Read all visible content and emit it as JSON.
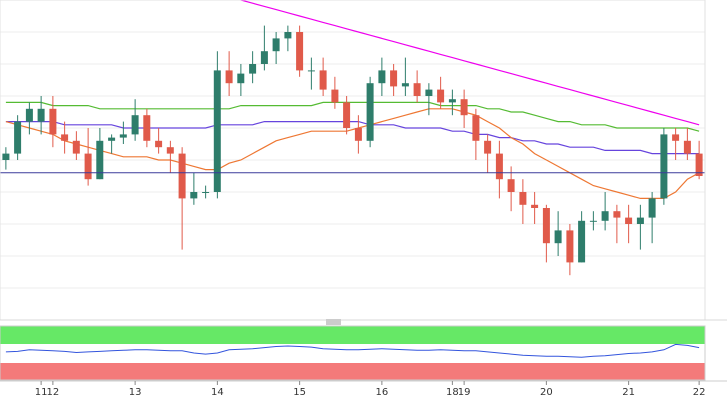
{
  "chart_data": {
    "type": "candlestick",
    "title": "",
    "x_ticks": [
      "11",
      "12",
      "13",
      "14",
      "15",
      "16",
      "18",
      "19",
      "20",
      "21",
      "22"
    ],
    "price_range": [
      0,
      100
    ],
    "horizontal_level": 46,
    "candles": [
      {
        "o": 50,
        "h": 54,
        "l": 47,
        "c": 52
      },
      {
        "o": 52,
        "h": 64,
        "l": 50,
        "c": 62
      },
      {
        "o": 62,
        "h": 68,
        "l": 58,
        "c": 66
      },
      {
        "o": 62,
        "h": 70,
        "l": 58,
        "c": 66
      },
      {
        "o": 66,
        "h": 70,
        "l": 54,
        "c": 58
      },
      {
        "o": 58,
        "h": 62,
        "l": 52,
        "c": 56
      },
      {
        "o": 56,
        "h": 59,
        "l": 50,
        "c": 52
      },
      {
        "o": 52,
        "h": 60,
        "l": 42,
        "c": 44
      },
      {
        "o": 44,
        "h": 60,
        "l": 44,
        "c": 56
      },
      {
        "o": 56,
        "h": 58,
        "l": 52,
        "c": 57
      },
      {
        "o": 57,
        "h": 62,
        "l": 55,
        "c": 58
      },
      {
        "o": 58,
        "h": 69,
        "l": 56,
        "c": 64
      },
      {
        "o": 64,
        "h": 66,
        "l": 54,
        "c": 56
      },
      {
        "o": 56,
        "h": 60,
        "l": 52,
        "c": 54
      },
      {
        "o": 54,
        "h": 56,
        "l": 46,
        "c": 52
      },
      {
        "o": 52,
        "h": 54,
        "l": 22,
        "c": 38
      },
      {
        "o": 38,
        "h": 46,
        "l": 36,
        "c": 40
      },
      {
        "o": 40,
        "h": 42,
        "l": 38,
        "c": 40
      },
      {
        "o": 40,
        "h": 84,
        "l": 38,
        "c": 78
      },
      {
        "o": 78,
        "h": 84,
        "l": 70,
        "c": 74
      },
      {
        "o": 74,
        "h": 80,
        "l": 70,
        "c": 77
      },
      {
        "o": 77,
        "h": 84,
        "l": 74,
        "c": 80
      },
      {
        "o": 80,
        "h": 92,
        "l": 78,
        "c": 84
      },
      {
        "o": 84,
        "h": 90,
        "l": 80,
        "c": 88
      },
      {
        "o": 88,
        "h": 92,
        "l": 84,
        "c": 90
      },
      {
        "o": 90,
        "h": 92,
        "l": 76,
        "c": 78
      },
      {
        "o": 78,
        "h": 82,
        "l": 72,
        "c": 78
      },
      {
        "o": 78,
        "h": 82,
        "l": 70,
        "c": 72
      },
      {
        "o": 72,
        "h": 76,
        "l": 66,
        "c": 68
      },
      {
        "o": 68,
        "h": 70,
        "l": 58,
        "c": 60
      },
      {
        "o": 60,
        "h": 64,
        "l": 52,
        "c": 56
      },
      {
        "o": 56,
        "h": 76,
        "l": 54,
        "c": 74
      },
      {
        "o": 74,
        "h": 82,
        "l": 70,
        "c": 78
      },
      {
        "o": 78,
        "h": 80,
        "l": 70,
        "c": 73
      },
      {
        "o": 73,
        "h": 82,
        "l": 70,
        "c": 74
      },
      {
        "o": 74,
        "h": 78,
        "l": 68,
        "c": 70
      },
      {
        "o": 70,
        "h": 74,
        "l": 64,
        "c": 72
      },
      {
        "o": 72,
        "h": 76,
        "l": 66,
        "c": 68
      },
      {
        "o": 68,
        "h": 72,
        "l": 64,
        "c": 69
      },
      {
        "o": 69,
        "h": 72,
        "l": 60,
        "c": 64
      },
      {
        "o": 64,
        "h": 66,
        "l": 50,
        "c": 56
      },
      {
        "o": 56,
        "h": 58,
        "l": 46,
        "c": 52
      },
      {
        "o": 52,
        "h": 56,
        "l": 38,
        "c": 44
      },
      {
        "o": 44,
        "h": 48,
        "l": 34,
        "c": 40
      },
      {
        "o": 40,
        "h": 44,
        "l": 30,
        "c": 36
      },
      {
        "o": 36,
        "h": 40,
        "l": 30,
        "c": 35
      },
      {
        "o": 35,
        "h": 36,
        "l": 18,
        "c": 24
      },
      {
        "o": 24,
        "h": 34,
        "l": 20,
        "c": 28
      },
      {
        "o": 28,
        "h": 30,
        "l": 14,
        "c": 18
      },
      {
        "o": 18,
        "h": 34,
        "l": 18,
        "c": 31
      },
      {
        "o": 31,
        "h": 34,
        "l": 28,
        "c": 31
      },
      {
        "o": 31,
        "h": 40,
        "l": 28,
        "c": 34
      },
      {
        "o": 34,
        "h": 36,
        "l": 24,
        "c": 32
      },
      {
        "o": 32,
        "h": 36,
        "l": 24,
        "c": 30
      },
      {
        "o": 30,
        "h": 36,
        "l": 22,
        "c": 32
      },
      {
        "o": 32,
        "h": 40,
        "l": 24,
        "c": 38
      },
      {
        "o": 38,
        "h": 60,
        "l": 36,
        "c": 58
      },
      {
        "o": 58,
        "h": 60,
        "l": 50,
        "c": 56
      },
      {
        "o": 56,
        "h": 60,
        "l": 50,
        "c": 52
      },
      {
        "o": 52,
        "h": 56,
        "l": 44,
        "c": 45
      }
    ],
    "series": [
      {
        "color": "#ee00ee",
        "values": [
          120,
          119,
          118,
          117,
          116,
          115,
          114,
          113,
          112,
          111,
          110,
          109,
          108,
          107,
          106,
          105,
          104,
          103,
          102,
          101,
          100,
          99,
          98,
          97,
          96,
          95,
          94,
          93,
          92,
          91,
          90,
          89,
          88,
          87,
          86,
          85,
          84,
          83,
          82,
          81,
          80,
          79,
          78,
          77,
          76,
          75,
          74,
          73,
          72,
          71,
          70,
          69,
          68,
          67,
          66,
          65,
          64,
          63,
          62,
          61
        ]
      },
      {
        "color": "#55bb33",
        "values": [
          68,
          68,
          68,
          68,
          67,
          67,
          67,
          67,
          66,
          66,
          66,
          66,
          66,
          66,
          66,
          66,
          66,
          66,
          66,
          66,
          67,
          67,
          67,
          67,
          67,
          67,
          67,
          68,
          68,
          68,
          68,
          68,
          68,
          68,
          68,
          68,
          68,
          67,
          67,
          67,
          67,
          66,
          66,
          65,
          65,
          64,
          63,
          62,
          62,
          61,
          61,
          61,
          60,
          60,
          60,
          60,
          60,
          60,
          60,
          59
        ]
      },
      {
        "color": "#6644dd",
        "values": [
          62,
          62,
          62,
          62,
          62,
          61,
          61,
          61,
          61,
          61,
          60,
          60,
          60,
          60,
          60,
          60,
          60,
          60,
          61,
          61,
          61,
          61,
          62,
          62,
          62,
          62,
          62,
          62,
          62,
          62,
          62,
          61,
          61,
          61,
          60,
          60,
          60,
          60,
          59,
          59,
          58,
          58,
          57,
          57,
          56,
          56,
          55,
          55,
          54,
          54,
          54,
          53,
          53,
          53,
          53,
          52,
          52,
          52,
          52,
          52
        ]
      },
      {
        "color": "#ee7733",
        "values": [
          62,
          61,
          60,
          59,
          58,
          56,
          55,
          54,
          53,
          52,
          51,
          51,
          51,
          50,
          50,
          49,
          48,
          47,
          47,
          49,
          50,
          52,
          54,
          56,
          57,
          58,
          59,
          59,
          59,
          59,
          60,
          61,
          62,
          63,
          64,
          65,
          66,
          66,
          66,
          65,
          64,
          62,
          60,
          57,
          55,
          52,
          50,
          48,
          46,
          44,
          42,
          41,
          40,
          39,
          38,
          38,
          38,
          40,
          44,
          46
        ]
      }
    ],
    "indicator": {
      "type": "oscillator",
      "range": [
        0,
        100
      ],
      "upper_band_color": "#66e866",
      "lower_band_color": "#f47a7a",
      "line_color": "#3355dd",
      "values": [
        52,
        53,
        56,
        55,
        54,
        53,
        51,
        52,
        53,
        54,
        55,
        56,
        56,
        55,
        54,
        54,
        50,
        48,
        50,
        56,
        57,
        58,
        60,
        62,
        63,
        62,
        61,
        58,
        57,
        56,
        56,
        57,
        58,
        57,
        56,
        55,
        55,
        56,
        55,
        54,
        54,
        52,
        50,
        48,
        46,
        45,
        44,
        44,
        43,
        42,
        44,
        45,
        47,
        49,
        50,
        52,
        56,
        66,
        64,
        60
      ]
    }
  }
}
